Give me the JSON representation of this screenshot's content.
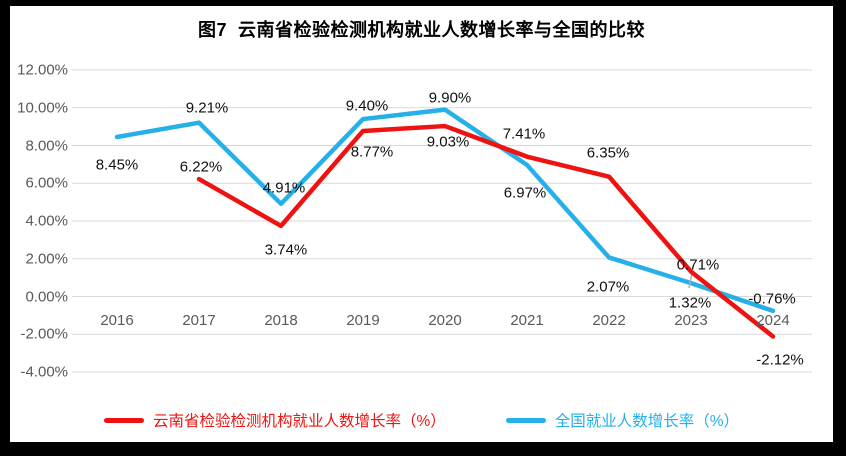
{
  "title": "图7  云南省检验检测机构就业人数增长率与全国的比较",
  "frame": {
    "border_color": "#000000",
    "chart_background": "#ffffff"
  },
  "chart_data": {
    "type": "line",
    "categories": [
      "2016",
      "2017",
      "2018",
      "2019",
      "2020",
      "2021",
      "2022",
      "2023",
      "2024"
    ],
    "series": [
      {
        "name": "云南省检验检测机构就业人数增长率（%）",
        "color": "#ee1310",
        "values": [
          null,
          6.22,
          3.74,
          8.77,
          9.03,
          7.41,
          6.35,
          1.32,
          -2.12
        ],
        "labels": [
          null,
          "6.22%",
          "3.74%",
          "8.77%",
          "9.03%",
          "7.41%",
          "6.35%",
          "1.32%",
          "-2.12%"
        ]
      },
      {
        "name": "全国就业人数增长率（%）",
        "color": "#25b0e8",
        "values": [
          8.45,
          9.21,
          4.91,
          9.4,
          9.9,
          6.97,
          2.07,
          0.71,
          -0.76
        ],
        "labels": [
          "8.45%",
          "9.21%",
          "4.91%",
          "9.40%",
          "9.90%",
          "6.97%",
          "2.07%",
          "0.71%",
          "-0.76%"
        ]
      }
    ],
    "y_axis": {
      "tick_labels": [
        "12.00%",
        "10.00%",
        "8.00%",
        "6.00%",
        "4.00%",
        "2.00%",
        "0.00%",
        "-2.00%",
        "-4.00%"
      ],
      "tick_values": [
        12,
        10,
        8,
        6,
        4,
        2,
        0,
        -2,
        -4
      ]
    },
    "ylim": [
      -4,
      12
    ],
    "grid": true,
    "legend_position": "bottom",
    "gridline_color": "#d9d9d9",
    "axis_text_color": "#595959",
    "data_label_color": "#111111",
    "leader_line_color": "#b0b0b0"
  }
}
